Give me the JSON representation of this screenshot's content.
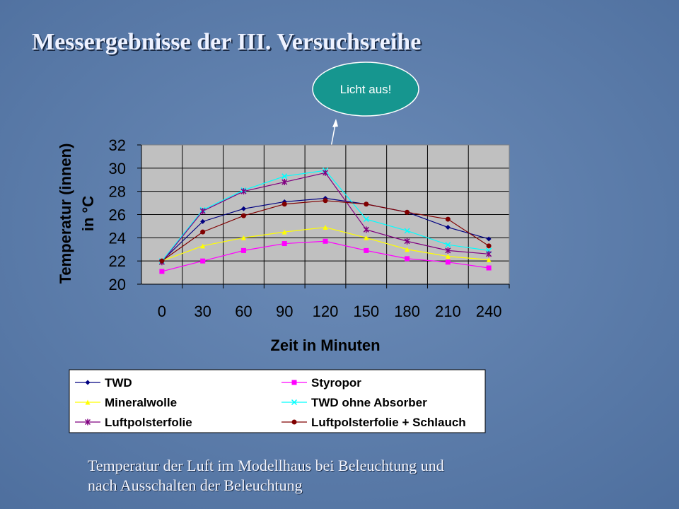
{
  "slide": {
    "title": "Messergebnisse der III. Versuchsreihe",
    "callout": "Licht aus!",
    "caption": [
      "Temperatur der Luft im Modellhaus bei Beleuchtung und",
      "nach Ausschalten der Beleuchtung"
    ]
  },
  "chart_data": {
    "type": "line",
    "xlabel": "Zeit in Minuten",
    "ylabel": [
      "Temperatur (innen)",
      "in °C"
    ],
    "categories": [
      "0",
      "30",
      "60",
      "90",
      "120",
      "150",
      "180",
      "210",
      "240"
    ],
    "ylim": [
      20,
      32
    ],
    "yticks": [
      20,
      22,
      24,
      26,
      28,
      30,
      32
    ],
    "grid": true,
    "legend": "bottom",
    "series": [
      {
        "name": "TWD",
        "color": "#000080",
        "marker": "diamond",
        "values": [
          22.0,
          25.4,
          26.5,
          27.1,
          27.4,
          26.9,
          26.2,
          24.9,
          23.9
        ]
      },
      {
        "name": "Styropor",
        "color": "#ff00ff",
        "marker": "square",
        "values": [
          21.1,
          22.0,
          22.9,
          23.5,
          23.7,
          22.9,
          22.2,
          21.9,
          21.4
        ]
      },
      {
        "name": "Mineralwolle",
        "color": "#ffff00",
        "marker": "triangle",
        "values": [
          22.0,
          23.3,
          24.0,
          24.5,
          24.9,
          24.0,
          23.0,
          22.4,
          22.1
        ]
      },
      {
        "name": "TWD ohne Absorber",
        "color": "#00ffff",
        "marker": "x",
        "values": [
          22.0,
          26.4,
          28.1,
          29.3,
          29.8,
          25.6,
          24.6,
          23.4,
          22.9
        ]
      },
      {
        "name": "Luftpolsterfolie",
        "color": "#800080",
        "marker": "star",
        "values": [
          21.9,
          26.3,
          28.0,
          28.8,
          29.6,
          24.7,
          23.7,
          22.9,
          22.6
        ]
      },
      {
        "name": "Luftpolsterfolie + Schlauch",
        "color": "#800000",
        "marker": "circle",
        "values": [
          22.0,
          24.5,
          25.9,
          26.9,
          27.2,
          26.9,
          26.2,
          25.6,
          23.3
        ]
      }
    ]
  }
}
